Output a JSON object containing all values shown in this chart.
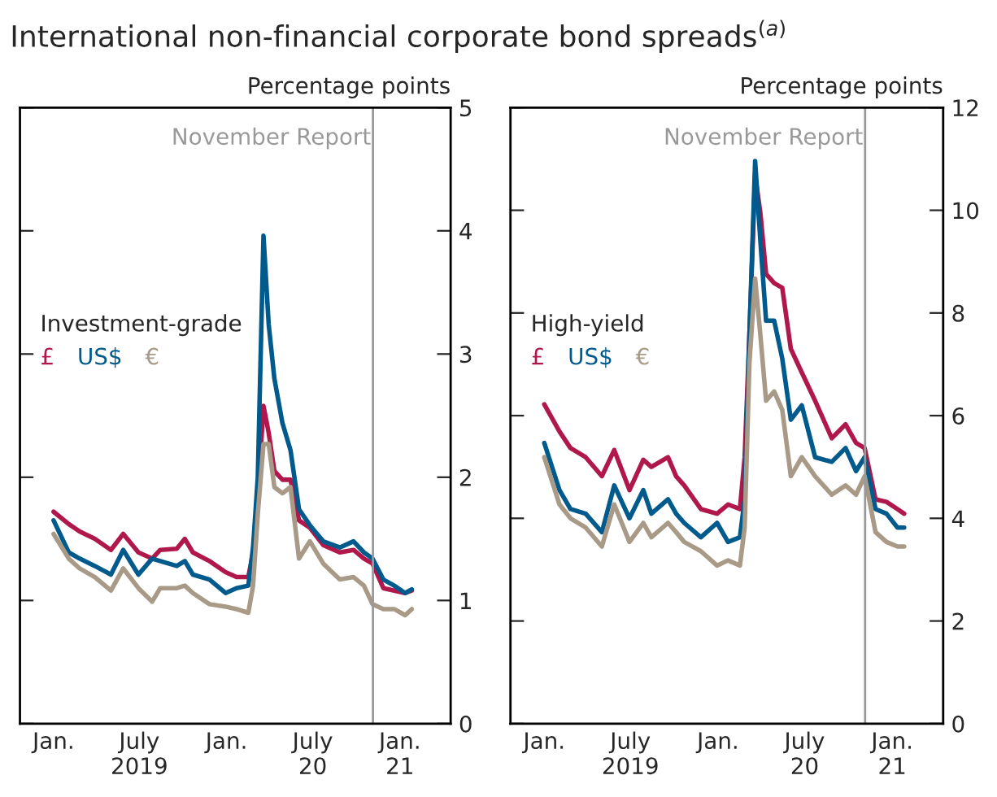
{
  "chart_data": [
    {
      "type": "line",
      "title": "International non-financial corporate bond spreads$^{(a)}$",
      "ylabel": "Percentage points",
      "legend_title": "Investment-grade",
      "legend": "left",
      "x": [
        "2019-01-01",
        "2019-02-02",
        "2019-02-25",
        "2019-03-29",
        "2019-05-02",
        "2019-05-28",
        "2019-06-29",
        "2019-07-28",
        "2019-08-14",
        "2019-09-18",
        "2019-10-05",
        "2019-10-22",
        "2019-11-26",
        "2019-12-30",
        "2020-01-22",
        "2020-02-16",
        "2020-02-26",
        "2020-03-07",
        "2020-03-19",
        "2020-03-30",
        "2020-04-11",
        "2020-04-28",
        "2020-05-15",
        "2020-06-02",
        "2020-06-25",
        "2020-07-23",
        "2020-08-27",
        "2020-09-25",
        "2020-10-17",
        "2020-11-04",
        "2020-11-27",
        "2020-12-20",
        "2021-01-12",
        "2021-01-26"
      ],
      "series": [
        {
          "name": "£",
          "color": "#b0174a",
          "values": [
            1.72,
            1.62,
            1.56,
            1.5,
            1.41,
            1.54,
            1.39,
            1.34,
            1.41,
            1.42,
            1.5,
            1.39,
            1.32,
            1.23,
            1.19,
            1.19,
            1.39,
            1.83,
            2.58,
            2.36,
            2.05,
            1.98,
            1.98,
            1.65,
            1.59,
            1.45,
            1.39,
            1.41,
            1.34,
            1.3,
            1.1,
            1.08,
            1.06,
            1.08
          ]
        },
        {
          "name": "US$",
          "color": "#005a8c",
          "values": [
            1.65,
            1.39,
            1.34,
            1.28,
            1.21,
            1.41,
            1.21,
            1.34,
            1.32,
            1.28,
            1.32,
            1.21,
            1.17,
            1.06,
            1.1,
            1.12,
            1.43,
            2.0,
            3.96,
            3.24,
            2.8,
            2.44,
            2.22,
            1.74,
            1.61,
            1.48,
            1.43,
            1.48,
            1.39,
            1.34,
            1.17,
            1.12,
            1.06,
            1.09
          ]
        },
        {
          "name": "€",
          "color": "#a89a86",
          "values": [
            1.54,
            1.34,
            1.26,
            1.19,
            1.08,
            1.26,
            1.1,
            0.99,
            1.1,
            1.1,
            1.12,
            1.06,
            0.97,
            0.95,
            0.93,
            0.9,
            1.12,
            1.7,
            2.27,
            2.27,
            1.92,
            1.87,
            1.92,
            1.34,
            1.48,
            1.3,
            1.17,
            1.19,
            1.12,
            0.97,
            0.93,
            0.93,
            0.88,
            0.93
          ]
        }
      ],
      "xlim": [
        "2018-10-22",
        "2021-04-18"
      ],
      "xticks": [
        {
          "value": "2019-01-01",
          "label": "Jan."
        },
        {
          "value": "2019-07-01",
          "label": "July\n2019"
        },
        {
          "value": "2020-01-01",
          "label": "Jan."
        },
        {
          "value": "2020-07-01",
          "label": "July\n20"
        },
        {
          "value": "2021-01-01",
          "label": "Jan.\n21"
        }
      ],
      "ylim": [
        0,
        5
      ],
      "yticks": [
        0,
        1,
        2,
        3,
        4,
        5
      ],
      "ref_lines": [
        {
          "axis": "x",
          "value": "2020-11-05",
          "label": "November Report",
          "color": "#999999"
        }
      ]
    },
    {
      "type": "line",
      "ylabel": "Percentage points",
      "legend_title": "High-yield",
      "legend": "left",
      "x": [
        "2019-01-01",
        "2019-02-02",
        "2019-02-25",
        "2019-03-29",
        "2019-05-02",
        "2019-05-28",
        "2019-06-29",
        "2019-07-28",
        "2019-08-14",
        "2019-09-18",
        "2019-10-05",
        "2019-10-22",
        "2019-11-26",
        "2019-12-30",
        "2020-01-22",
        "2020-02-16",
        "2020-02-26",
        "2020-03-07",
        "2020-03-19",
        "2020-03-30",
        "2020-04-11",
        "2020-04-28",
        "2020-05-15",
        "2020-06-02",
        "2020-06-25",
        "2020-07-23",
        "2020-08-27",
        "2020-09-25",
        "2020-10-17",
        "2020-11-04",
        "2020-11-27",
        "2020-12-20",
        "2021-01-12",
        "2021-01-26"
      ],
      "series": [
        {
          "name": "£",
          "color": "#b0174a",
          "values": [
            6.22,
            5.69,
            5.37,
            5.19,
            4.82,
            5.33,
            4.55,
            5.14,
            5.0,
            5.19,
            4.82,
            4.64,
            4.18,
            4.09,
            4.27,
            4.18,
            5.19,
            7.57,
            10.68,
            9.95,
            8.76,
            8.58,
            8.49,
            7.3,
            6.84,
            6.29,
            5.56,
            5.83,
            5.47,
            5.37,
            4.37,
            4.32,
            4.18,
            4.09
          ]
        },
        {
          "name": "US$",
          "color": "#005a8c",
          "values": [
            5.47,
            4.55,
            4.18,
            4.09,
            3.73,
            4.64,
            4.0,
            4.55,
            4.09,
            4.37,
            4.09,
            3.91,
            3.63,
            3.91,
            3.54,
            3.63,
            4.37,
            7.57,
            10.96,
            9.4,
            7.85,
            7.85,
            7.11,
            5.92,
            6.2,
            5.19,
            5.1,
            5.37,
            4.92,
            5.19,
            4.18,
            4.09,
            3.82,
            3.82
          ]
        },
        {
          "name": "€",
          "color": "#a89a86",
          "values": [
            5.19,
            4.27,
            4.0,
            3.82,
            3.45,
            4.27,
            3.54,
            3.91,
            3.63,
            3.91,
            3.73,
            3.54,
            3.36,
            3.08,
            3.18,
            3.08,
            3.82,
            7.02,
            8.67,
            7.57,
            6.29,
            6.47,
            6.11,
            4.82,
            5.19,
            4.82,
            4.46,
            4.64,
            4.46,
            4.82,
            3.73,
            3.54,
            3.45,
            3.45
          ]
        }
      ],
      "xlim": [
        "2018-10-22",
        "2021-04-18"
      ],
      "xticks": [
        {
          "value": "2019-01-01",
          "label": "Jan."
        },
        {
          "value": "2019-07-01",
          "label": "July\n2019"
        },
        {
          "value": "2020-01-01",
          "label": "Jan."
        },
        {
          "value": "2020-07-01",
          "label": "July\n20"
        },
        {
          "value": "2021-01-01",
          "label": "Jan.\n21"
        }
      ],
      "ylim": [
        0,
        12
      ],
      "yticks": [
        0,
        2,
        4,
        6,
        8,
        10,
        12
      ],
      "ref_lines": [
        {
          "axis": "x",
          "value": "2020-11-05",
          "label": "November Report",
          "color": "#999999"
        }
      ]
    }
  ]
}
